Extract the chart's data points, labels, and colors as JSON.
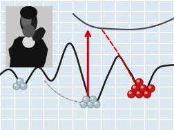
{
  "bg_color": "#dce8f0",
  "grid_color": "#ffffff",
  "curve_color": "#1a1a1a",
  "upper_curve_color": "#444444",
  "arrow_red": "#cc0000",
  "arrow_gray": "#888888",
  "ball_gray_fill": "#adbec5",
  "ball_gray_edge": "#7a9aa3",
  "ball_red_fill": "#cc1111",
  "ball_red_edge": "#881111",
  "portrait_bg": "#bbbbbb",
  "portrait_dark": "#1c1c1c",
  "portrait_mid": "#555555",
  "portrait_light": "#aaaaaa"
}
